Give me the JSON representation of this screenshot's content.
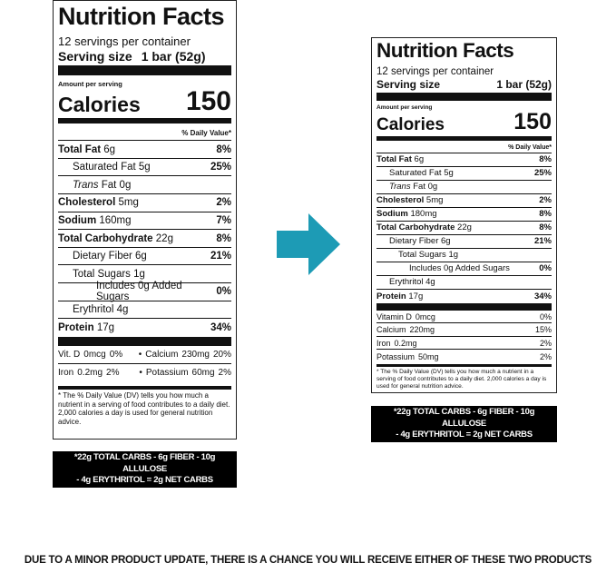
{
  "left_label": {
    "title": "Nutrition Facts",
    "servings_per_container": "12 servings per container",
    "serving_size_label": "Serving size",
    "serving_size_value": "1 bar (52g)",
    "amount_per_serving": "Amount per serving",
    "calories_label": "Calories",
    "calories_value": "150",
    "daily_value_header": "% Daily Value*",
    "nutrients": [
      {
        "name": "Total Fat",
        "amount": "6g",
        "pct": "8%"
      },
      {
        "name": "Saturated Fat",
        "amount": "5g",
        "pct": "25%"
      },
      {
        "name": "Trans",
        "amount": "Fat 0g",
        "pct": ""
      },
      {
        "name": "Cholesterol",
        "amount": "5mg",
        "pct": "2%"
      },
      {
        "name": "Sodium",
        "amount": "160mg",
        "pct": "7%"
      },
      {
        "name": "Total Carbohydrate",
        "amount": "22g",
        "pct": "8%"
      },
      {
        "name": "Dietary Fiber",
        "amount": "6g",
        "pct": "21%"
      },
      {
        "name": "Total Sugars",
        "amount": "1g",
        "pct": ""
      },
      {
        "name": "Includes 0g Added Sugars",
        "amount": "",
        "pct": "0%"
      },
      {
        "name": "Erythritol",
        "amount": "4g",
        "pct": ""
      },
      {
        "name": "Protein",
        "amount": "17g",
        "pct": "34%"
      }
    ],
    "minerals": [
      {
        "a_name": "Vit. D",
        "a_amount": "0mcg",
        "a_pct": "0%",
        "b_name": "Calcium",
        "b_amount": "230mg",
        "b_pct": "20%"
      },
      {
        "a_name": "Iron",
        "a_amount": "0.2mg",
        "a_pct": "2%",
        "b_name": "Potassium",
        "b_amount": "60mg",
        "b_pct": "2%"
      }
    ],
    "footnote": "* The % Daily Value (DV) tells you how much a nutrient in a serving of food contributes to a daily diet. 2,000 calories a day is used for general nutrition advice.",
    "net_carbs_line1": "*22g TOTAL CARBS - 6g FIBER - 10g ALLULOSE",
    "net_carbs_line2": "- 4g ERYTHRITOL = 2g NET CARBS"
  },
  "right_label": {
    "title": "Nutrition Facts",
    "servings_per_container": "12 servings per container",
    "serving_size_label": "Serving size",
    "serving_size_value": "1 bar (52g)",
    "amount_per_serving": "Amount per serving",
    "calories_label": "Calories",
    "calories_value": "150",
    "daily_value_header": "% Daily Value*",
    "nutrients": [
      {
        "name": "Total Fat",
        "amount": "6g",
        "pct": "8%"
      },
      {
        "name": "Saturated Fat",
        "amount": "5g",
        "pct": "25%"
      },
      {
        "name": "Trans",
        "amount": "Fat 0g",
        "pct": ""
      },
      {
        "name": "Cholesterol",
        "amount": "5mg",
        "pct": "2%"
      },
      {
        "name": "Sodium",
        "amount": "180mg",
        "pct": "8%"
      },
      {
        "name": "Total Carbohydrate",
        "amount": "22g",
        "pct": "8%"
      },
      {
        "name": "Dietary Fiber",
        "amount": "6g",
        "pct": "21%"
      },
      {
        "name": "Total Sugars",
        "amount": "1g",
        "pct": ""
      },
      {
        "name": "Includes 0g Added Sugars",
        "amount": "",
        "pct": "0%"
      },
      {
        "name": "Erythritol",
        "amount": "4g",
        "pct": ""
      },
      {
        "name": "Protein",
        "amount": "17g",
        "pct": "34%"
      }
    ],
    "minerals": [
      {
        "name": "Vitamin D",
        "amount": "0mcg",
        "pct": "0%"
      },
      {
        "name": "Calcium",
        "amount": "220mg",
        "pct": "15%"
      },
      {
        "name": "Iron",
        "amount": "0.2mg",
        "pct": "2%"
      },
      {
        "name": "Potassium",
        "amount": "50mg",
        "pct": "2%"
      }
    ],
    "footnote": "* The % Daily Value (DV) tells you how much a nutrient in a serving of food contributes to a daily diet. 2,000 calories a day is used for general nutrition advice.",
    "net_carbs_line1": "*22g TOTAL CARBS - 6g FIBER - 10g ALLULOSE",
    "net_carbs_line2": "- 4g ERYTHRITOL = 2g NET CARBS"
  },
  "arrow_icon": "right-arrow-icon",
  "arrow_color": "#1d9bb5",
  "notice": "DUE TO A MINOR PRODUCT UPDATE, THERE IS A CHANCE YOU WILL RECEIVE EITHER OF THESE TWO PRODUCTS"
}
